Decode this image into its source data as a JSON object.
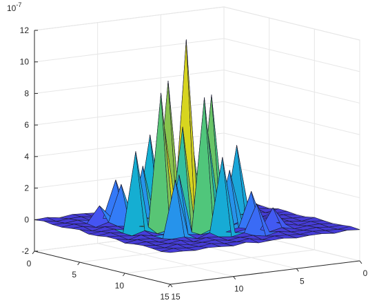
{
  "chart_data": {
    "type": "surface",
    "title": "",
    "xlabel": "",
    "ylabel": "",
    "zlabel": "",
    "z_exponent_label": {
      "base": "10",
      "exponent": "-7"
    },
    "xlim": [
      0,
      15
    ],
    "ylim": [
      0,
      15
    ],
    "zlim": [
      -2,
      12
    ],
    "xticks": [
      0,
      5,
      10,
      15
    ],
    "yticks": [
      15,
      10,
      5,
      0
    ],
    "zticks": [
      -2,
      0,
      2,
      4,
      6,
      8,
      10,
      12
    ],
    "tick_labels": {
      "x": [
        "0",
        "5",
        "10",
        "15"
      ],
      "y": [
        "15",
        "10",
        "5",
        "0"
      ],
      "z": [
        "-2",
        "0",
        "2",
        "4",
        "6",
        "8",
        "10",
        "12"
      ]
    },
    "grid": true,
    "colormap": [
      "#3E26A8",
      "#4A48F0",
      "#2F84F8",
      "#13B2CF",
      "#45C684",
      "#B2C22C",
      "#F5E414",
      "#FFFF0A"
    ],
    "grid_size": [
      16,
      16
    ],
    "peaks": [
      {
        "x": 7,
        "y": 7,
        "z": 11.7
      },
      {
        "x": 7,
        "y": 5,
        "z": 8.5
      },
      {
        "x": 5,
        "y": 7,
        "z": 8.8
      },
      {
        "x": 9,
        "y": 7,
        "z": 8.3
      },
      {
        "x": 7,
        "y": 9,
        "z": 8.0
      },
      {
        "x": 8,
        "y": 6,
        "z": 6.4
      },
      {
        "x": 6,
        "y": 8,
        "z": 6.3
      },
      {
        "x": 6,
        "y": 6,
        "z": 6.0
      },
      {
        "x": 8,
        "y": 8,
        "z": 5.8
      },
      {
        "x": 3,
        "y": 7,
        "z": 5.1
      },
      {
        "x": 7,
        "y": 3,
        "z": 5.0
      },
      {
        "x": 11,
        "y": 7,
        "z": 4.8
      },
      {
        "x": 7,
        "y": 11,
        "z": 4.6
      },
      {
        "x": 5,
        "y": 5,
        "z": 3.6
      },
      {
        "x": 9,
        "y": 9,
        "z": 3.5
      },
      {
        "x": 5,
        "y": 9,
        "z": 3.3
      },
      {
        "x": 9,
        "y": 5,
        "z": 3.6
      },
      {
        "x": 4,
        "y": 4,
        "z": 2.4
      },
      {
        "x": 10,
        "y": 10,
        "z": 2.2
      },
      {
        "x": 4,
        "y": 10,
        "z": 2.5
      },
      {
        "x": 10,
        "y": 4,
        "z": 3.5
      },
      {
        "x": 2,
        "y": 5,
        "z": 2.3
      },
      {
        "x": 12,
        "y": 9,
        "z": 1.8
      },
      {
        "x": 3,
        "y": 3,
        "z": 1.0
      },
      {
        "x": 11,
        "y": 11,
        "z": 1.2
      }
    ]
  }
}
